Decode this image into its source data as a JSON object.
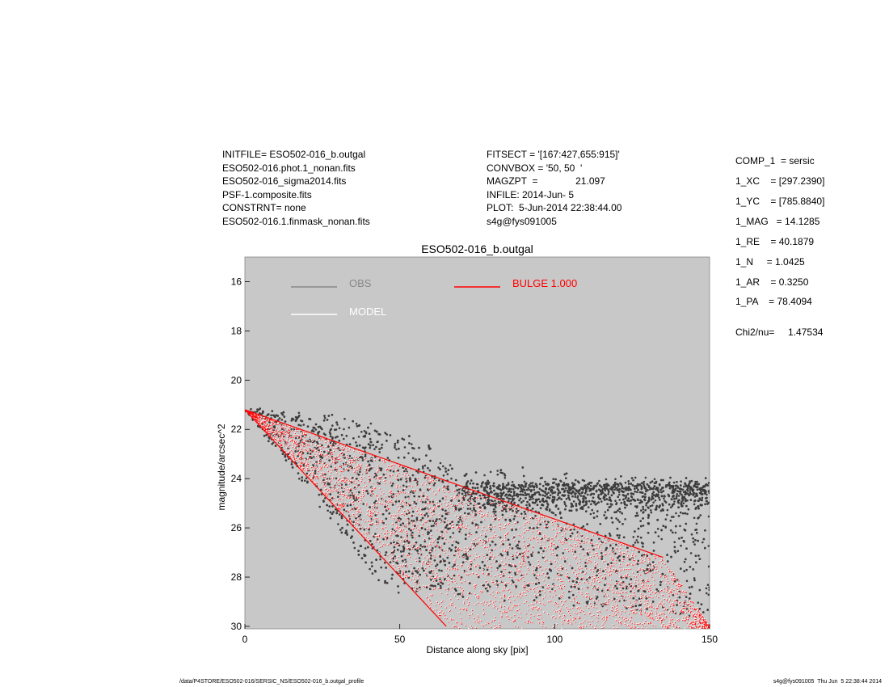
{
  "header_left": [
    "INITFILE= ESO502-016_b.outgal",
    "ESO502-016.phot.1_nonan.fits",
    "ESO502-016_sigma2014.fits",
    "PSF-1.composite.fits",
    "CONSTRNT= none",
    "ESO502-016.1.finmask_nonan.fits"
  ],
  "header_mid": [
    "FITSECT = '[167:427,655:915]'",
    "CONVBOX = '50, 50  '",
    "MAGZPT  =              21.097",
    "INFILE: 2014-Jun- 5",
    "PLOT:  5-Jun-2014 22:38:44.00",
    "s4g@fys091005"
  ],
  "header_right": [
    "COMP_1  = sersic",
    "1_XC    = [297.2390]",
    "1_YC    = [785.8840]",
    "1_MAG   = 14.1285",
    "1_RE    = 40.1879",
    "1_N     = 1.0425",
    "1_AR    = 0.3250",
    "1_PA    = 78.4094",
    "",
    "Chi2/nu=     1.47534"
  ],
  "footer_left": "/data/P4STORE/ESO502-016/SERSIC_NS/ESO502-016_b.outgal_profile",
  "footer_right": "s4g@fys091005  Thu Jun  5 22:38:44 2014",
  "chart_data": {
    "type": "scatter",
    "title": "ESO502-016_b.outgal",
    "xlabel": "Distance along sky [pix]",
    "ylabel": "magnitude/arcsec^2",
    "xlim": [
      0,
      150
    ],
    "ylim": [
      30,
      15
    ],
    "y_inverted": true,
    "xticks": [
      0,
      50,
      100,
      150
    ],
    "yticks": [
      16,
      18,
      20,
      22,
      24,
      26,
      28,
      30
    ],
    "background_color": "#c8c8c8",
    "grid": false,
    "legend_position": "top-left",
    "legend": [
      {
        "label": "OBS",
        "color": "#888888"
      },
      {
        "label": "MODEL",
        "color": "#ffffff"
      },
      {
        "label": "BULGE  1.000",
        "color": "#ff0000"
      }
    ],
    "series": [
      {
        "name": "OBS",
        "color": "#3c3c3c",
        "description_points": "scattered; upper edge ~ from (0,21.2) to (150,24.2); lower edge ~ from (0,21.2) to (40,28.2)",
        "lower_envelope": [
          [
            0,
            21.2
          ],
          [
            40,
            21.8
          ],
          [
            60,
            23.5
          ],
          [
            100,
            24.0
          ],
          [
            150,
            24.2
          ]
        ],
        "upper_envelope": [
          [
            0,
            21.2
          ],
          [
            20,
            24.5
          ],
          [
            40,
            28.2
          ],
          [
            60,
            28.5
          ],
          [
            100,
            29.5
          ],
          [
            150,
            30.0
          ]
        ]
      },
      {
        "name": "MODEL",
        "color": "#ffffff",
        "upper_envelope": [
          [
            0,
            21.2
          ],
          [
            135,
            27.2
          ],
          [
            150,
            30.0
          ]
        ],
        "lower_envelope": [
          [
            0,
            21.2
          ],
          [
            65,
            30.0
          ]
        ]
      },
      {
        "name": "BULGE  1.000",
        "color": "#ff0000",
        "upper_envelope": [
          [
            0,
            21.2
          ],
          [
            135,
            27.2
          ],
          [
            150,
            30.0
          ]
        ],
        "lower_envelope": [
          [
            0,
            21.2
          ],
          [
            65,
            30.0
          ]
        ]
      }
    ]
  }
}
